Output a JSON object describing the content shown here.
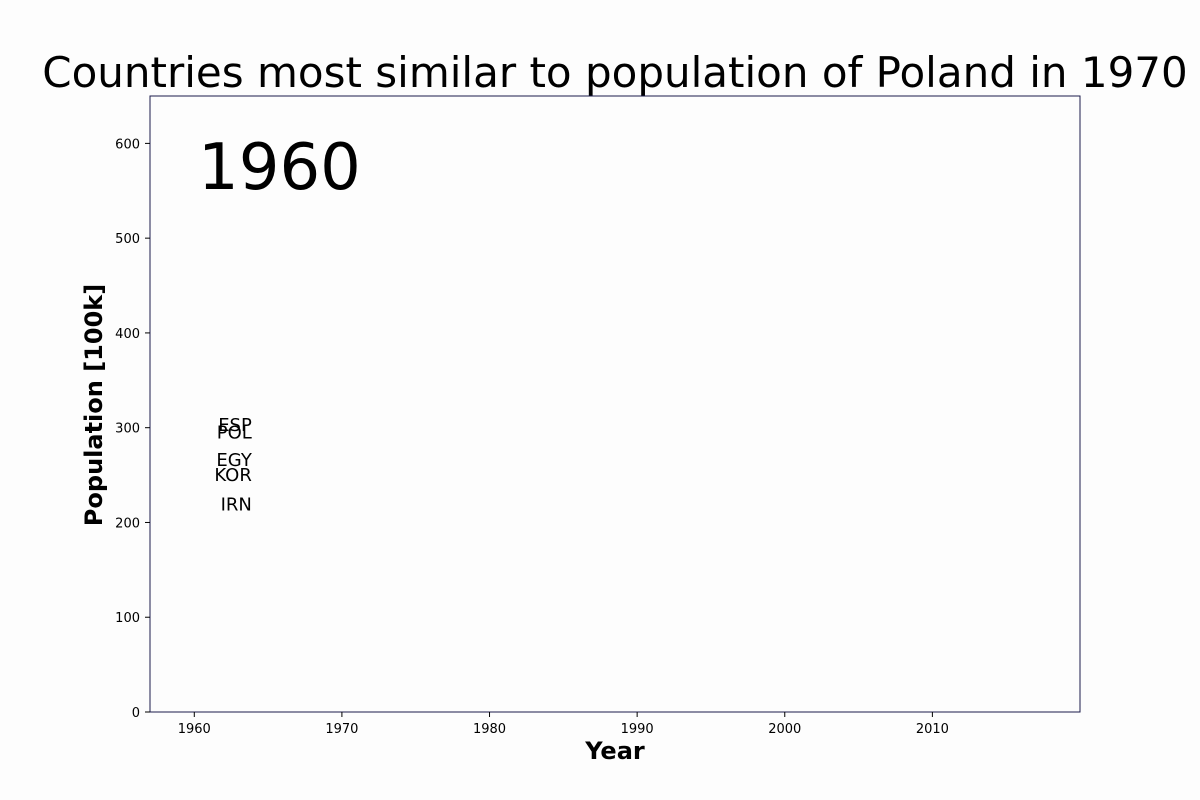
{
  "chart_data": {
    "type": "scatter",
    "title": "Countries most similar to population of Poland in 1970",
    "xlabel": "Year",
    "ylabel": "Population [100k]",
    "xlim": [
      1957,
      2020
    ],
    "ylim": [
      0,
      650
    ],
    "xticks": [
      1960,
      1970,
      1980,
      1990,
      2000,
      2010
    ],
    "yticks": [
      0,
      100,
      200,
      300,
      400,
      500,
      600
    ],
    "grid": false,
    "current_year": "1960",
    "points": [
      {
        "label": "ESP",
        "x": 1963.9,
        "y": 304
      },
      {
        "label": "POL",
        "x": 1963.9,
        "y": 296
      },
      {
        "label": "EGY",
        "x": 1963.9,
        "y": 267
      },
      {
        "label": "KOR",
        "x": 1963.9,
        "y": 251
      },
      {
        "label": "IRN",
        "x": 1963.9,
        "y": 220
      }
    ]
  }
}
